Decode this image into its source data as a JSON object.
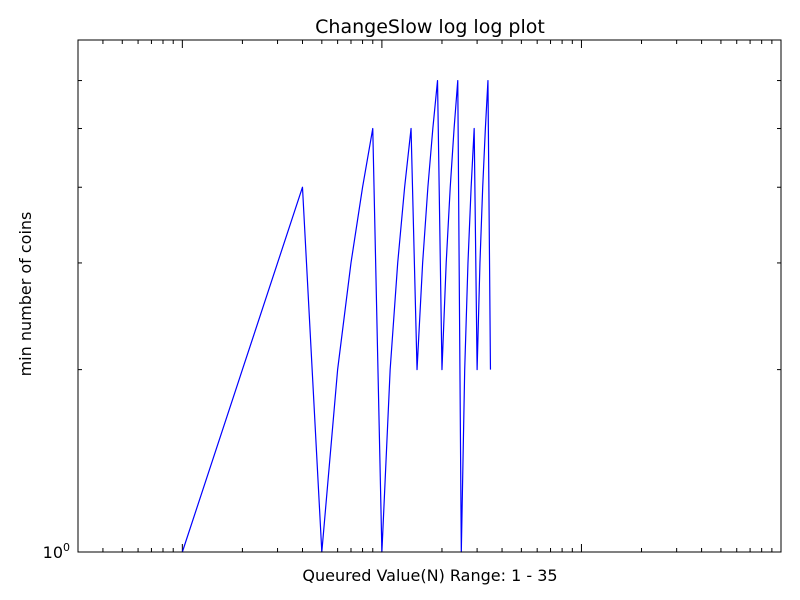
{
  "chart_data": {
    "type": "line",
    "title": "ChangeSlow log log plot",
    "xlabel": "Queured Value(N) Range: 1 - 35",
    "ylabel": "min number of coins",
    "x_scale": "log",
    "y_scale": "log",
    "xlim": [
      0.3,
      1000
    ],
    "ylim": [
      1,
      7
    ],
    "grid": false,
    "y_tick_labels": [
      {
        "value": 1,
        "base": "10",
        "exp": "0"
      }
    ],
    "series": [
      {
        "color": "#0000ff",
        "x": [
          1,
          2,
          3,
          4,
          5,
          6,
          7,
          8,
          9,
          10,
          11,
          12,
          13,
          14,
          15,
          16,
          17,
          18,
          19,
          20,
          21,
          22,
          23,
          24,
          25,
          26,
          27,
          28,
          29,
          30,
          31,
          32,
          33,
          34,
          35
        ],
        "y": [
          1,
          2,
          3,
          4,
          1,
          2,
          3,
          4,
          5,
          1,
          2,
          3,
          4,
          5,
          2,
          3,
          4,
          5,
          6,
          2,
          3,
          4,
          5,
          6,
          1,
          2,
          3,
          4,
          5,
          2,
          3,
          4,
          5,
          6,
          2
        ]
      }
    ]
  }
}
